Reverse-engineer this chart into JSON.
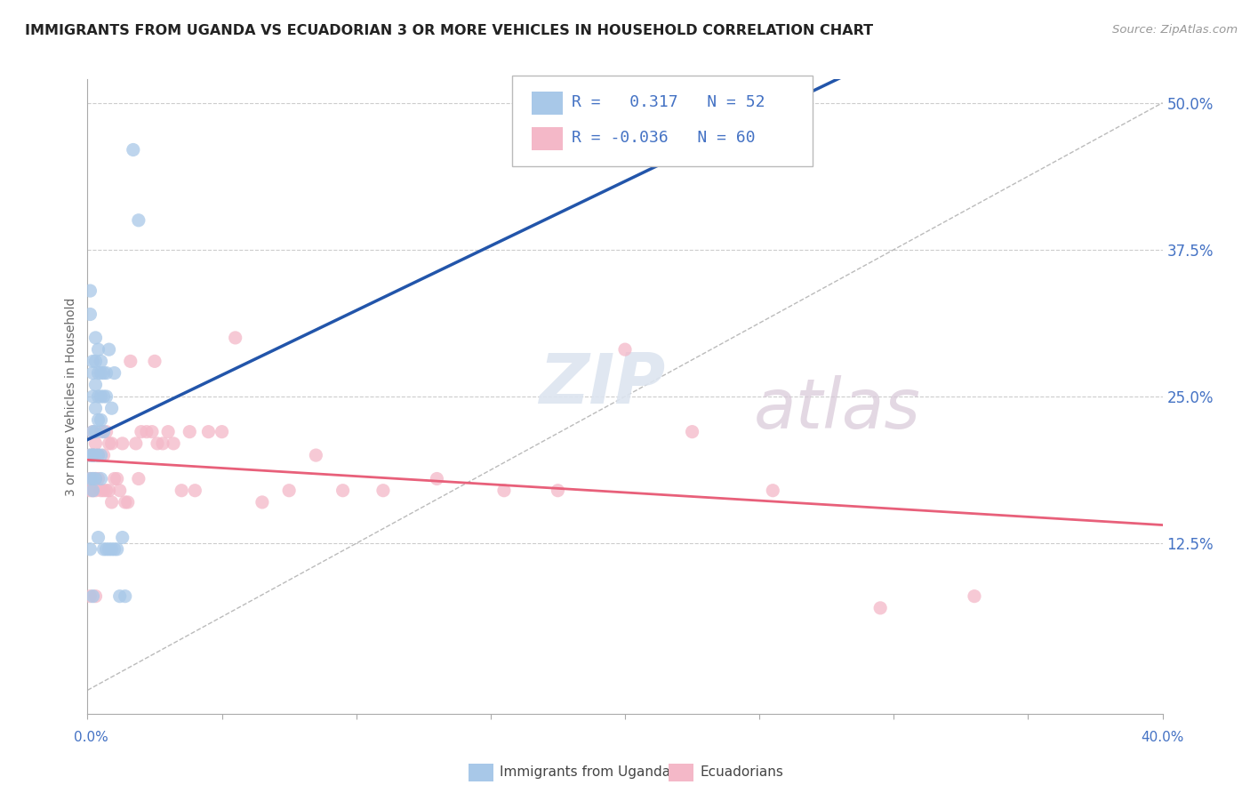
{
  "title": "IMMIGRANTS FROM UGANDA VS ECUADORIAN 3 OR MORE VEHICLES IN HOUSEHOLD CORRELATION CHART",
  "source": "Source: ZipAtlas.com",
  "ylabel": "3 or more Vehicles in Household",
  "ytick_labels": [
    "50.0%",
    "37.5%",
    "25.0%",
    "12.5%"
  ],
  "ytick_values": [
    0.5,
    0.375,
    0.25,
    0.125
  ],
  "xlim": [
    0.0,
    0.4
  ],
  "ylim": [
    -0.02,
    0.52
  ],
  "r_blue": 0.317,
  "n_blue": 52,
  "r_pink": -0.036,
  "n_pink": 60,
  "blue_color": "#a8c8e8",
  "pink_color": "#f4b8c8",
  "blue_line_color": "#2255aa",
  "pink_line_color": "#e8607a",
  "watermark_1": "ZIP",
  "watermark_2": "atlas",
  "legend_label_blue": "Immigrants from Uganda",
  "legend_label_pink": "Ecuadorians",
  "blue_scatter_x": [
    0.001,
    0.001,
    0.001,
    0.001,
    0.001,
    0.002,
    0.002,
    0.002,
    0.002,
    0.002,
    0.002,
    0.002,
    0.002,
    0.002,
    0.003,
    0.003,
    0.003,
    0.003,
    0.003,
    0.003,
    0.003,
    0.004,
    0.004,
    0.004,
    0.004,
    0.004,
    0.004,
    0.005,
    0.005,
    0.005,
    0.005,
    0.005,
    0.005,
    0.006,
    0.006,
    0.006,
    0.006,
    0.007,
    0.007,
    0.007,
    0.008,
    0.008,
    0.009,
    0.009,
    0.01,
    0.01,
    0.011,
    0.012,
    0.013,
    0.014,
    0.017,
    0.019
  ],
  "blue_scatter_y": [
    0.34,
    0.32,
    0.2,
    0.18,
    0.12,
    0.28,
    0.27,
    0.25,
    0.22,
    0.2,
    0.2,
    0.18,
    0.17,
    0.08,
    0.3,
    0.28,
    0.26,
    0.24,
    0.22,
    0.2,
    0.18,
    0.29,
    0.27,
    0.25,
    0.23,
    0.2,
    0.13,
    0.28,
    0.27,
    0.25,
    0.23,
    0.2,
    0.18,
    0.27,
    0.25,
    0.22,
    0.12,
    0.27,
    0.25,
    0.12,
    0.29,
    0.12,
    0.24,
    0.12,
    0.27,
    0.12,
    0.12,
    0.08,
    0.13,
    0.08,
    0.46,
    0.4
  ],
  "pink_scatter_x": [
    0.001,
    0.001,
    0.001,
    0.001,
    0.002,
    0.002,
    0.002,
    0.002,
    0.003,
    0.003,
    0.003,
    0.003,
    0.004,
    0.004,
    0.005,
    0.005,
    0.006,
    0.006,
    0.007,
    0.007,
    0.008,
    0.008,
    0.009,
    0.009,
    0.01,
    0.011,
    0.012,
    0.013,
    0.014,
    0.015,
    0.016,
    0.018,
    0.019,
    0.02,
    0.022,
    0.024,
    0.025,
    0.026,
    0.028,
    0.03,
    0.032,
    0.035,
    0.038,
    0.04,
    0.045,
    0.05,
    0.055,
    0.065,
    0.075,
    0.085,
    0.095,
    0.11,
    0.13,
    0.155,
    0.175,
    0.2,
    0.225,
    0.255,
    0.295,
    0.33
  ],
  "pink_scatter_y": [
    0.2,
    0.18,
    0.17,
    0.08,
    0.22,
    0.2,
    0.18,
    0.17,
    0.21,
    0.18,
    0.17,
    0.08,
    0.2,
    0.18,
    0.22,
    0.17,
    0.2,
    0.17,
    0.22,
    0.17,
    0.21,
    0.17,
    0.21,
    0.16,
    0.18,
    0.18,
    0.17,
    0.21,
    0.16,
    0.16,
    0.28,
    0.21,
    0.18,
    0.22,
    0.22,
    0.22,
    0.28,
    0.21,
    0.21,
    0.22,
    0.21,
    0.17,
    0.22,
    0.17,
    0.22,
    0.22,
    0.3,
    0.16,
    0.17,
    0.2,
    0.17,
    0.17,
    0.18,
    0.17,
    0.17,
    0.29,
    0.22,
    0.17,
    0.07,
    0.08
  ]
}
